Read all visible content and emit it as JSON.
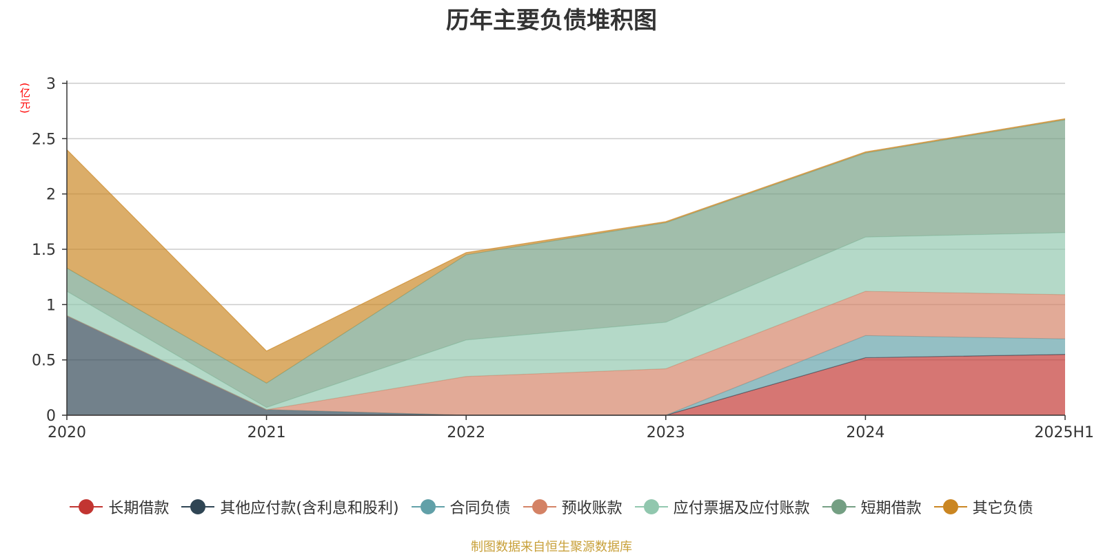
{
  "title": "历年主要负债堆积图",
  "source_note": "制图数据来自恒生聚源数据库",
  "chart_data": {
    "type": "area",
    "stacked": true,
    "title": "历年主要负债堆积图",
    "ylabel": "(亿元)",
    "xlabel": "",
    "categories": [
      "2020",
      "2021",
      "2022",
      "2023",
      "2024",
      "2025H1"
    ],
    "ylim": [
      0,
      3
    ],
    "yticks": [
      0,
      0.5,
      1,
      1.5,
      2,
      2.5,
      3
    ],
    "ytick_labels": [
      "0",
      "0.5",
      "1",
      "1.5",
      "2",
      "2.5",
      "3"
    ],
    "grid": true,
    "legend_position": "bottom",
    "series": [
      {
        "name": "长期借款",
        "color": "#c23531",
        "values": [
          0,
          0,
          0,
          0,
          0.52,
          0.55
        ]
      },
      {
        "name": "其他应付款(含利息和股利)",
        "color": "#2f4554",
        "values": [
          0.9,
          0.05,
          0,
          0,
          0,
          0
        ]
      },
      {
        "name": "合同负债",
        "color": "#61a0a8",
        "values": [
          0,
          0,
          0,
          0,
          0.2,
          0.14
        ]
      },
      {
        "name": "预收账款",
        "color": "#d48265",
        "values": [
          0,
          0,
          0.35,
          0.42,
          0.4,
          0.4
        ]
      },
      {
        "name": "应付票据及应付账款",
        "color": "#91c7ae",
        "values": [
          0.22,
          0.02,
          0.33,
          0.42,
          0.49,
          0.56
        ]
      },
      {
        "name": "短期借款",
        "color": "#749f83",
        "values": [
          0.21,
          0.22,
          0.77,
          0.9,
          0.76,
          1.02
        ]
      },
      {
        "name": "其它负债",
        "color": "#ca8622",
        "values": [
          1.07,
          0.29,
          0.02,
          0.01,
          0.01,
          0.01
        ]
      }
    ]
  }
}
